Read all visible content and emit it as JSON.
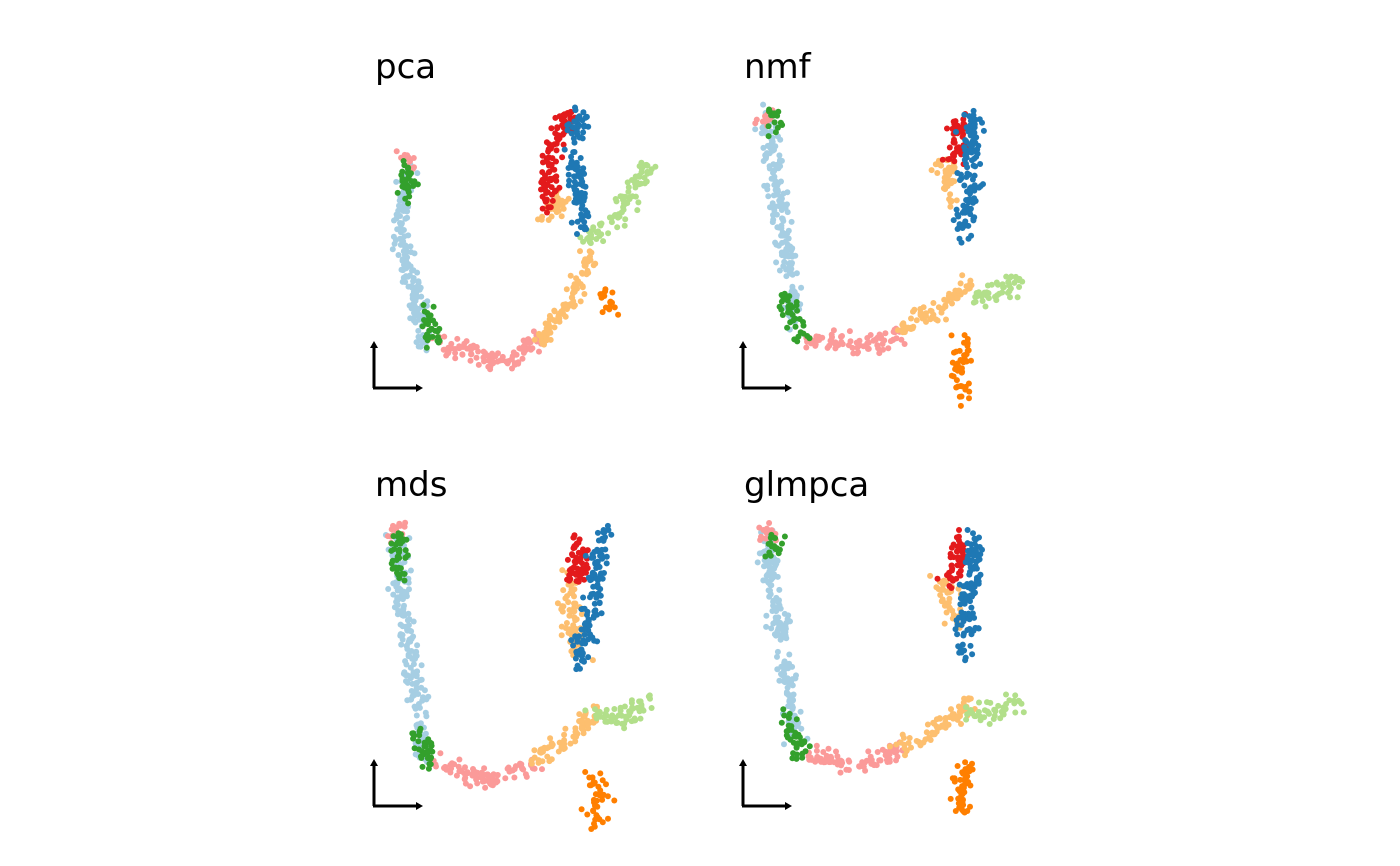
{
  "colors": {
    "light_blue": "#a6cee3",
    "dark_blue": "#1f78b4",
    "light_green": "#b2df8a",
    "dark_green": "#33a02c",
    "pink": "#fb9a99",
    "red": "#e31a1c",
    "light_orange": "#fdbf6f",
    "orange": "#ff7f00",
    "axis": "#000000"
  },
  "chart_data": [
    {
      "type": "scatter",
      "title": "pca",
      "xlabel": "",
      "ylabel": "",
      "legend": "none",
      "grid": false,
      "axes": "arrow-only",
      "series": [
        {
          "color": "light_blue",
          "segments": [
            [
              [
                0.08,
                0.78
              ],
              [
                0.05,
                0.55
              ],
              [
                0.1,
                0.35
              ],
              [
                0.15,
                0.1
              ]
            ]
          ]
        },
        {
          "color": "dark_green",
          "segments": [
            [
              [
                0.08,
                0.8
              ],
              [
                0.07,
                0.68
              ]
            ],
            [
              [
                0.15,
                0.25
              ],
              [
                0.19,
                0.12
              ]
            ]
          ]
        },
        {
          "color": "pink",
          "segments": [
            [
              [
                0.07,
                0.84
              ],
              [
                0.08,
                0.8
              ]
            ],
            [
              [
                0.2,
                0.12
              ],
              [
                0.45,
                0.04
              ],
              [
                0.58,
                0.14
              ]
            ]
          ]
        },
        {
          "color": "light_orange",
          "segments": [
            [
              [
                0.57,
                0.12
              ],
              [
                0.7,
                0.28
              ],
              [
                0.76,
                0.46
              ]
            ],
            [
              [
                0.58,
                0.58
              ],
              [
                0.68,
                0.68
              ]
            ]
          ]
        },
        {
          "color": "light_green",
          "segments": [
            [
              [
                0.76,
                0.5
              ],
              [
                0.88,
                0.62
              ],
              [
                0.98,
                0.8
              ]
            ]
          ]
        },
        {
          "color": "orange",
          "segments": [
            [
              [
                0.8,
                0.32
              ],
              [
                0.84,
                0.26
              ]
            ]
          ]
        },
        {
          "color": "red",
          "segments": [
            [
              [
                0.6,
                0.6
              ],
              [
                0.62,
                0.82
              ],
              [
                0.68,
                1.0
              ]
            ]
          ]
        },
        {
          "color": "dark_blue",
          "segments": [
            [
              [
                0.74,
                0.55
              ],
              [
                0.71,
                0.8
              ],
              [
                0.73,
                1.0
              ]
            ]
          ]
        }
      ]
    },
    {
      "type": "scatter",
      "title": "nmf",
      "xlabel": "",
      "ylabel": "",
      "legend": "none",
      "grid": false,
      "axes": "arrow-only",
      "series": [
        {
          "color": "light_blue",
          "segments": [
            [
              [
                0.06,
                1.0
              ],
              [
                0.08,
                0.75
              ],
              [
                0.12,
                0.5
              ],
              [
                0.16,
                0.2
              ]
            ]
          ]
        },
        {
          "color": "dark_green",
          "segments": [
            [
              [
                0.07,
                1.0
              ],
              [
                0.08,
                0.93
              ]
            ],
            [
              [
                0.12,
                0.3
              ],
              [
                0.18,
                0.14
              ]
            ]
          ]
        },
        {
          "color": "pink",
          "segments": [
            [
              [
                0.05,
                1.0
              ],
              [
                0.06,
                0.98
              ]
            ],
            [
              [
                0.2,
                0.14
              ],
              [
                0.4,
                0.1
              ],
              [
                0.55,
                0.16
              ]
            ]
          ]
        },
        {
          "color": "light_orange",
          "segments": [
            [
              [
                0.55,
                0.16
              ],
              [
                0.68,
                0.24
              ],
              [
                0.8,
                0.34
              ]
            ],
            [
              [
                0.7,
                0.82
              ],
              [
                0.74,
                0.64
              ]
            ]
          ]
        },
        {
          "color": "light_green",
          "segments": [
            [
              [
                0.8,
                0.3
              ],
              [
                0.9,
                0.3
              ],
              [
                0.98,
                0.36
              ]
            ]
          ]
        },
        {
          "color": "orange",
          "segments": [
            [
              [
                0.78,
                0.12
              ],
              [
                0.77,
                -0.08
              ]
            ]
          ]
        },
        {
          "color": "red",
          "segments": [
            [
              [
                0.75,
                0.98
              ],
              [
                0.77,
                0.86
              ],
              [
                0.71,
                0.8
              ]
            ]
          ]
        },
        {
          "color": "dark_blue",
          "segments": [
            [
              [
                0.82,
                1.0
              ],
              [
                0.8,
                0.75
              ],
              [
                0.78,
                0.52
              ]
            ]
          ]
        }
      ]
    },
    {
      "type": "scatter",
      "title": "mds",
      "xlabel": "",
      "ylabel": "",
      "legend": "none",
      "grid": false,
      "axes": "arrow-only",
      "series": [
        {
          "color": "light_blue",
          "segments": [
            [
              [
                0.04,
                1.0
              ],
              [
                0.06,
                0.7
              ],
              [
                0.12,
                0.4
              ],
              [
                0.14,
                0.14
              ]
            ]
          ]
        },
        {
          "color": "dark_green",
          "segments": [
            [
              [
                0.05,
                0.98
              ],
              [
                0.05,
                0.82
              ]
            ],
            [
              [
                0.12,
                0.22
              ],
              [
                0.18,
                0.08
              ]
            ]
          ]
        },
        {
          "color": "pink",
          "segments": [
            [
              [
                0.03,
                1.0
              ],
              [
                0.05,
                0.99
              ]
            ],
            [
              [
                0.2,
                0.1
              ],
              [
                0.4,
                0.04
              ],
              [
                0.56,
                0.12
              ]
            ]
          ]
        },
        {
          "color": "light_orange",
          "segments": [
            [
              [
                0.55,
                0.12
              ],
              [
                0.68,
                0.2
              ],
              [
                0.78,
                0.3
              ]
            ],
            [
              [
                0.68,
                0.82
              ],
              [
                0.72,
                0.5
              ]
            ]
          ]
        },
        {
          "color": "light_green",
          "segments": [
            [
              [
                0.76,
                0.3
              ],
              [
                0.9,
                0.28
              ],
              [
                0.98,
                0.36
              ]
            ]
          ]
        },
        {
          "color": "orange",
          "segments": [
            [
              [
                0.79,
                0.06
              ],
              [
                0.79,
                -0.12
              ]
            ]
          ]
        },
        {
          "color": "red",
          "segments": [
            [
              [
                0.7,
                0.98
              ],
              [
                0.74,
                0.84
              ],
              [
                0.68,
                0.8
              ]
            ]
          ]
        },
        {
          "color": "dark_blue",
          "segments": [
            [
              [
                0.82,
                1.0
              ],
              [
                0.78,
                0.74
              ],
              [
                0.72,
                0.48
              ]
            ]
          ]
        }
      ]
    },
    {
      "type": "scatter",
      "title": "glmpca",
      "xlabel": "",
      "ylabel": "",
      "legend": "none",
      "grid": false,
      "axes": "arrow-only",
      "series": [
        {
          "color": "light_blue",
          "segments": [
            [
              [
                0.06,
                1.0
              ],
              [
                0.08,
                0.75
              ],
              [
                0.12,
                0.5
              ],
              [
                0.16,
                0.2
              ]
            ]
          ]
        },
        {
          "color": "dark_green",
          "segments": [
            [
              [
                0.07,
                0.98
              ],
              [
                0.08,
                0.9
              ]
            ],
            [
              [
                0.12,
                0.3
              ],
              [
                0.18,
                0.14
              ]
            ]
          ]
        },
        {
          "color": "pink",
          "segments": [
            [
              [
                0.05,
                1.0
              ],
              [
                0.06,
                0.98
              ]
            ],
            [
              [
                0.2,
                0.14
              ],
              [
                0.4,
                0.1
              ],
              [
                0.55,
                0.16
              ]
            ]
          ]
        },
        {
          "color": "light_orange",
          "segments": [
            [
              [
                0.55,
                0.16
              ],
              [
                0.68,
                0.24
              ],
              [
                0.8,
                0.34
              ]
            ],
            [
              [
                0.7,
                0.82
              ],
              [
                0.74,
                0.64
              ]
            ]
          ]
        },
        {
          "color": "light_green",
          "segments": [
            [
              [
                0.8,
                0.3
              ],
              [
                0.9,
                0.3
              ],
              [
                0.98,
                0.36
              ]
            ]
          ]
        },
        {
          "color": "orange",
          "segments": [
            [
              [
                0.78,
                0.12
              ],
              [
                0.77,
                -0.08
              ]
            ]
          ]
        },
        {
          "color": "red",
          "segments": [
            [
              [
                0.75,
                0.98
              ],
              [
                0.77,
                0.86
              ],
              [
                0.71,
                0.8
              ]
            ]
          ]
        },
        {
          "color": "dark_blue",
          "segments": [
            [
              [
                0.82,
                1.0
              ],
              [
                0.8,
                0.75
              ],
              [
                0.78,
                0.52
              ]
            ]
          ]
        }
      ]
    }
  ]
}
